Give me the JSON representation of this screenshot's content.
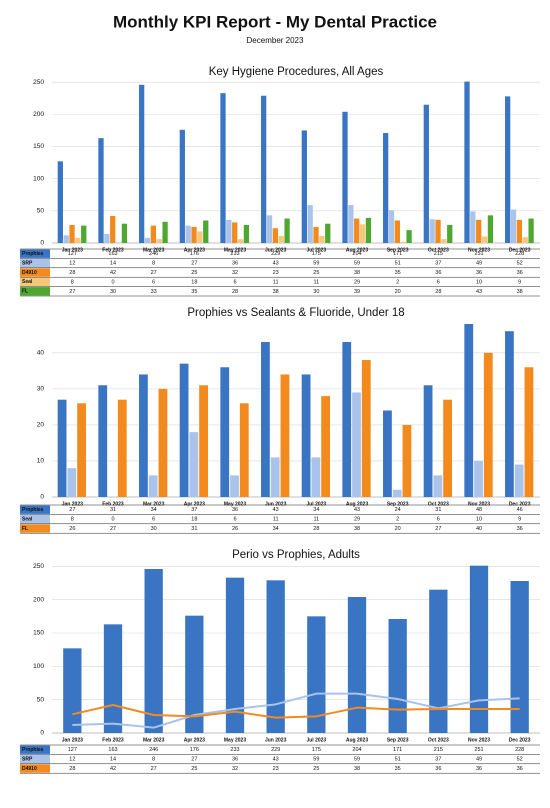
{
  "report": {
    "title": "Monthly KPI Report - My Dental Practice",
    "subtitle": "December 2023"
  },
  "chart_data": [
    {
      "type": "bar",
      "title": "Key Hygiene Procedures, All Ages",
      "categories": [
        "Jan 2023",
        "Feb 2023",
        "Mar 2023",
        "Apr 2023",
        "May 2023",
        "Jun 2023",
        "Jul 2023",
        "Aug 2023",
        "Sep 2023",
        "Oct 2023",
        "Nov 2023",
        "Dec 2023"
      ],
      "ylim": [
        0,
        255
      ],
      "yticks": [
        0,
        50,
        100,
        150,
        200,
        250
      ],
      "grid": true,
      "series": [
        {
          "name": "Prophies",
          "color": "#3a75c4",
          "values": [
            127,
            163,
            246,
            176,
            233,
            229,
            175,
            204,
            171,
            215,
            251,
            228
          ]
        },
        {
          "name": "SRP",
          "color": "#a9c3ea",
          "values": [
            12,
            14,
            8,
            27,
            36,
            43,
            59,
            59,
            51,
            37,
            49,
            52
          ]
        },
        {
          "name": "D4910",
          "color": "#f28a1e",
          "values": [
            28,
            42,
            27,
            25,
            32,
            23,
            25,
            38,
            35,
            36,
            36,
            36
          ]
        },
        {
          "name": "Seal",
          "color": "#f7c77e",
          "values": [
            8,
            0,
            6,
            18,
            6,
            11,
            11,
            29,
            2,
            6,
            10,
            9
          ]
        },
        {
          "name": "FL",
          "color": "#4ea72e",
          "values": [
            27,
            30,
            33,
            35,
            28,
            38,
            30,
            39,
            20,
            28,
            43,
            38
          ]
        }
      ]
    },
    {
      "type": "bar",
      "title": "Prophies vs Sealants & Fluoride, Under 18",
      "categories": [
        "Jan 2023",
        "Feb 2023",
        "Mar 2023",
        "Apr 2023",
        "May 2023",
        "Jun 2023",
        "Jul 2023",
        "Aug 2023",
        "Sep 2023",
        "Oct 2023",
        "Nov 2023",
        "Dec 2023"
      ],
      "ylim": [
        0,
        48
      ],
      "yticks": [
        0,
        10,
        20,
        30,
        40
      ],
      "grid": true,
      "series": [
        {
          "name": "Prophies",
          "color": "#3a75c4",
          "values": [
            27,
            31,
            34,
            37,
            36,
            43,
            34,
            43,
            24,
            31,
            48,
            46
          ]
        },
        {
          "name": "Seal",
          "color": "#a9c3ea",
          "values": [
            8,
            0,
            6,
            18,
            6,
            11,
            11,
            29,
            2,
            6,
            10,
            9
          ]
        },
        {
          "name": "FL",
          "color": "#f28a1e",
          "values": [
            26,
            27,
            30,
            31,
            26,
            34,
            28,
            38,
            20,
            27,
            40,
            36
          ]
        }
      ]
    },
    {
      "type": "combo",
      "title": "Perio vs Prophies, Adults",
      "categories": [
        "Jan 2023",
        "Feb 2023",
        "Mar 2023",
        "Apr 2023",
        "May 2023",
        "Jun 2023",
        "Jul 2023",
        "Aug 2023",
        "Sep 2023",
        "Oct 2023",
        "Nov 2023",
        "Dec 2023"
      ],
      "ylim": [
        0,
        255
      ],
      "yticks": [
        0,
        50,
        100,
        150,
        200,
        250
      ],
      "grid": true,
      "series": [
        {
          "name": "Prophies",
          "type": "bar",
          "color": "#3a75c4",
          "values": [
            127,
            163,
            246,
            176,
            233,
            229,
            175,
            204,
            171,
            215,
            251,
            228
          ]
        },
        {
          "name": "SRP",
          "type": "line",
          "color": "#a9c3ea",
          "values": [
            12,
            14,
            8,
            27,
            36,
            43,
            59,
            59,
            51,
            37,
            49,
            52
          ]
        },
        {
          "name": "D4910",
          "type": "line",
          "color": "#f28a1e",
          "values": [
            28,
            42,
            27,
            25,
            32,
            23,
            25,
            38,
            35,
            36,
            36,
            36
          ]
        }
      ]
    }
  ]
}
